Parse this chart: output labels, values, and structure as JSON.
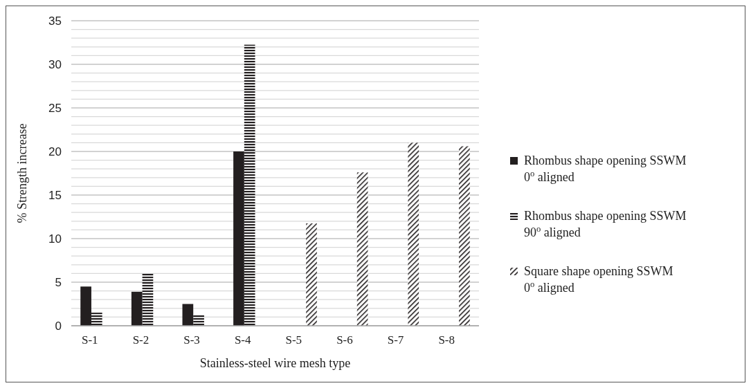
{
  "chart_data": {
    "type": "bar",
    "xlabel": "Stainless-steel wire mesh type",
    "ylabel": "% Strength increase",
    "categories": [
      "S-1",
      "S-2",
      "S-3",
      "S-4",
      "S-5",
      "S-6",
      "S-7",
      "S-8"
    ],
    "series": [
      {
        "name": "Rhombus shape opening SSWM\n0$^{o}$ aligned",
        "color": "#231f20",
        "values": [
          4.5,
          3.9,
          2.5,
          20.0,
          null,
          null,
          null,
          null
        ]
      },
      {
        "name": "Rhombus shape opening SSWM\n90$^{o}$ aligned",
        "color": "#231f20",
        "values": [
          1.5,
          6.0,
          1.25,
          32.25,
          null,
          null,
          null,
          null
        ]
      },
      {
        "name": "Square shape opening SSWM\n0$^{o}$ aligned",
        "color": "#231f20",
        "values": [
          null,
          null,
          null,
          null,
          11.75,
          17.6,
          21.0,
          20.6
        ]
      }
    ],
    "ylim": [
      0,
      35
    ],
    "yticks": [
      0,
      5,
      10,
      15,
      20,
      25,
      30,
      35
    ],
    "grid": "y",
    "legend": "right"
  }
}
